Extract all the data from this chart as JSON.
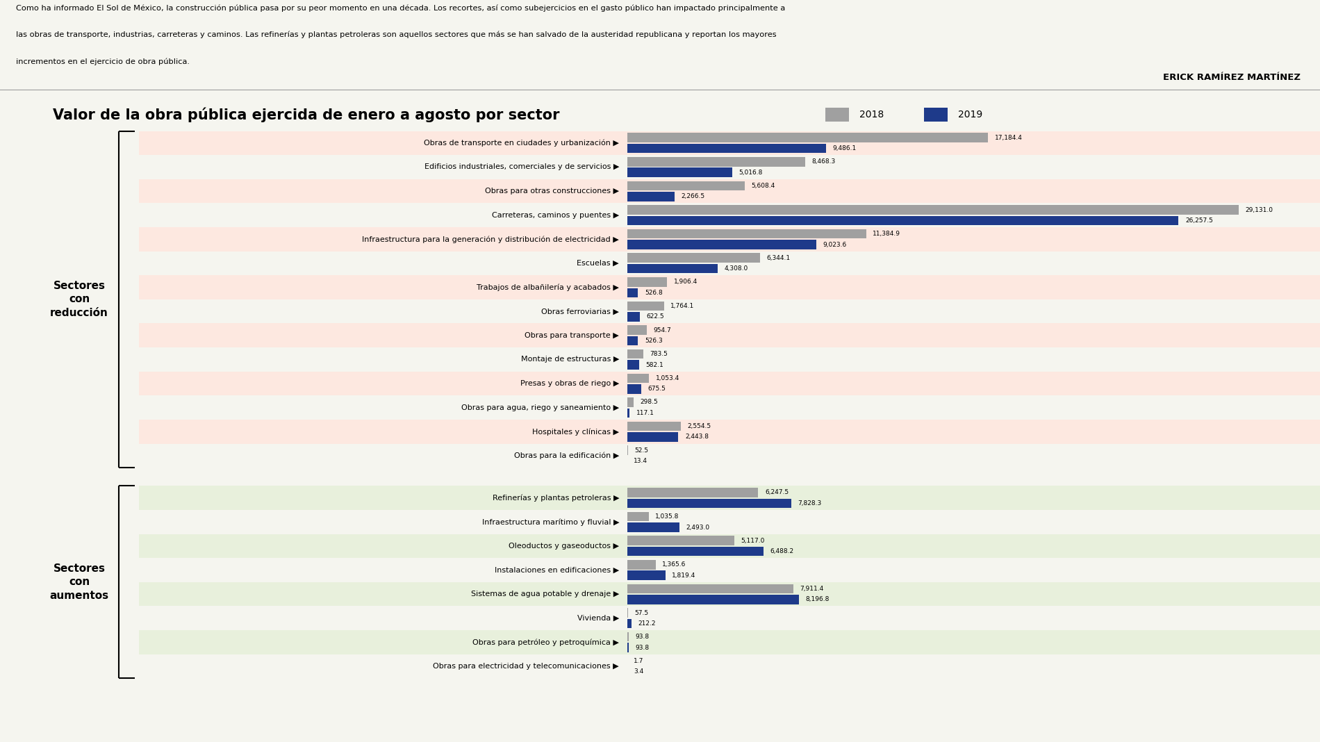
{
  "title": "Valor de la obra pública ejercida de enero a agosto por sector",
  "subtitle_line1": "Como ha informado El Sol de México, la construcción pública pasa por su peor momento en una década. Los recortes, así como subejercicios en el gasto público han impactado principalmente a",
  "subtitle_line2": "las obras de transporte, industrias, carreteras y caminos. Las refinerías y plantas petroleras son aquellos sectores que más se han salvado de la austeridad republicana y reportan los mayores",
  "subtitle_line3": "incrementos en el ejercicio de obra pública.",
  "author": "ERICK RAMÍREZ MARTÍNEZ",
  "legend_2018": "2018",
  "legend_2019": "2019",
  "color_2018": "#a0a0a0",
  "color_2019": "#1e3a8a",
  "bg_reduction": "#fde8e0",
  "bg_increase": "#e8f0dc",
  "bg_white": "#f5f5ef",
  "section_reduction_label": "Sectores\ncon\nreducción",
  "section_increase_label": "Sectores\ncon\naumentos",
  "reduction_categories": [
    "Obras de transporte en ciudades y urbanización",
    "Edificios industriales, comerciales y de servicios",
    "Obras para otras construcciones",
    "Carreteras, caminos y puentes",
    "Infraestructura para la generación y distribución de electricidad",
    "Escuelas",
    "Trabajos de albañilería y acabados",
    "Obras ferroviarias",
    "Obras para transporte",
    "Montaje de estructuras",
    "Presas y obras de riego",
    "Obras para agua, riego y saneamiento",
    "Hospitales y clínicas",
    "Obras para la edificación"
  ],
  "reduction_2018": [
    17184.4,
    8468.3,
    5608.4,
    29131.0,
    11384.9,
    6344.1,
    1906.4,
    1764.1,
    954.7,
    783.5,
    1053.4,
    298.5,
    2554.5,
    52.5
  ],
  "reduction_2019": [
    9486.1,
    5016.8,
    2266.5,
    26257.5,
    9023.6,
    4308.0,
    526.8,
    622.5,
    526.3,
    582.1,
    675.5,
    117.1,
    2443.8,
    13.4
  ],
  "reduction_bg": [
    1,
    0,
    1,
    0,
    1,
    0,
    1,
    0,
    1,
    0,
    1,
    0,
    1,
    0
  ],
  "increase_categories": [
    "Refinerías y plantas petroleras",
    "Infraestructura marítimo y fluvial",
    "Oleoductos y gaseoductos",
    "Instalaciones en edificaciones",
    "Sistemas de agua potable y drenaje",
    "Vivienda",
    "Obras para petróleo y petroquímica",
    "Obras para electricidad y telecomunicaciones"
  ],
  "increase_2018": [
    6247.5,
    1035.8,
    5117.0,
    1365.6,
    7911.4,
    57.5,
    93.8,
    1.7
  ],
  "increase_2019": [
    7828.3,
    2493.0,
    6488.2,
    1819.4,
    8196.8,
    212.2,
    93.8,
    3.4
  ],
  "increase_bg": [
    1,
    0,
    1,
    0,
    1,
    0,
    1,
    0
  ],
  "x_max": 32000,
  "bar_label_fontsize": 6.5,
  "cat_label_fontsize": 8.0,
  "title_fontsize": 15,
  "section_fontsize": 11
}
